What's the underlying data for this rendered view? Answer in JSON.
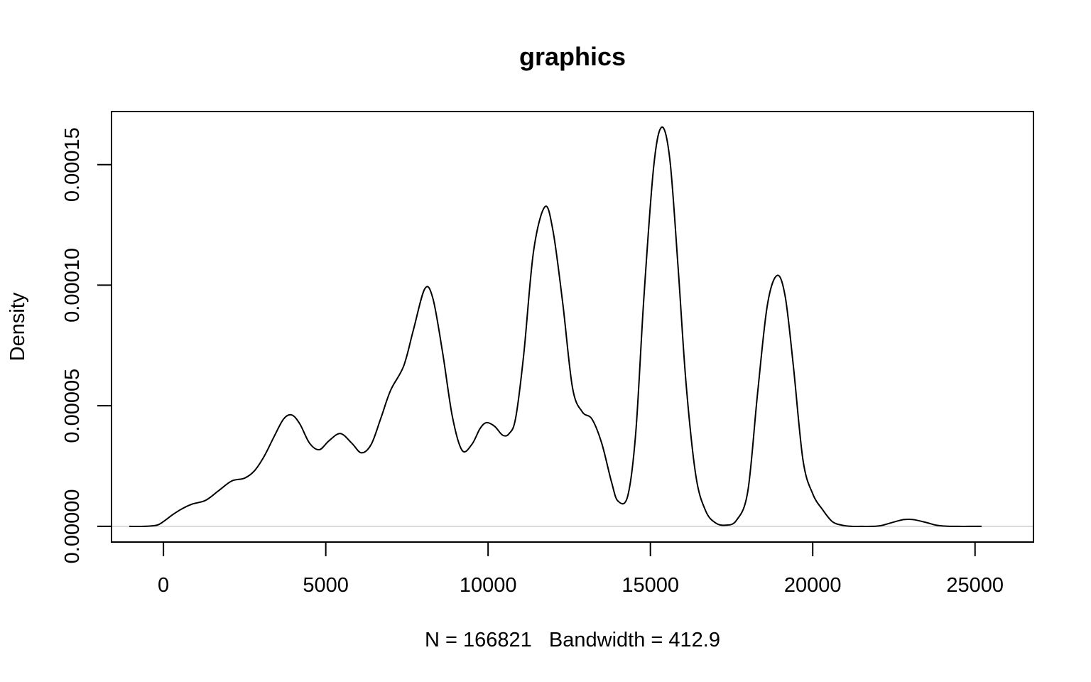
{
  "chart_data": {
    "type": "line",
    "title": "graphics",
    "xlabel": "N = 166821   Bandwidth = 412.9",
    "ylabel": "Density",
    "xlim": [
      -1600,
      26800
    ],
    "ylim": [
      -6.5e-06,
      0.000172
    ],
    "x_ticks": [
      0,
      5000,
      10000,
      15000,
      20000,
      25000
    ],
    "x_tick_labels": [
      "0",
      "5000",
      "10000",
      "15000",
      "20000",
      "25000"
    ],
    "y_ticks": [
      0,
      5e-05,
      0.0001,
      0.00015
    ],
    "y_tick_labels": [
      "0.00000",
      "0.00005",
      "0.00010",
      "0.00015"
    ],
    "baseline": 0,
    "baseline_color": "#bebebe",
    "line_color": "#000000",
    "grid": false,
    "legend": "none",
    "series": [
      {
        "x": [
          -1050,
          -600,
          -200,
          0,
          300,
          600,
          900,
          1300,
          1700,
          2100,
          2500,
          2800,
          3100,
          3400,
          3700,
          3950,
          4200,
          4500,
          4800,
          5100,
          5450,
          5800,
          6100,
          6400,
          6700,
          7000,
          7400,
          7700,
          8050,
          8300,
          8600,
          8900,
          9200,
          9500,
          9750,
          9950,
          10200,
          10450,
          10650,
          10850,
          11100,
          11400,
          11750,
          12000,
          12300,
          12600,
          12900,
          13200,
          13500,
          13800,
          14000,
          14300,
          14550,
          14800,
          15100,
          15350,
          15600,
          15850,
          16100,
          16400,
          16700,
          17000,
          17300,
          17650,
          18000,
          18300,
          18600,
          18900,
          19150,
          19400,
          19700,
          20000,
          20300,
          20600,
          20900,
          21200,
          21500,
          21800,
          22100,
          22500,
          22800,
          23100,
          23500,
          23800,
          24100,
          24500,
          24800,
          25200
        ],
        "y": [
          0,
          0,
          5e-07,
          2e-06,
          5e-06,
          7.5e-06,
          9.3e-06,
          1.08e-05,
          1.48e-05,
          1.88e-05,
          2e-05,
          2.3e-05,
          2.9e-05,
          3.7e-05,
          4.45e-05,
          4.62e-05,
          4.25e-05,
          3.45e-05,
          3.18e-05,
          3.55e-05,
          3.85e-05,
          3.45e-05,
          3.05e-05,
          3.4e-05,
          4.5e-05,
          5.65e-05,
          6.65e-05,
          8.15e-05,
          9.85e-05,
          9.45e-05,
          7.2e-05,
          4.55e-05,
          3.15e-05,
          3.4e-05,
          4.05e-05,
          4.3e-05,
          4.15e-05,
          3.78e-05,
          3.85e-05,
          4.5e-05,
          7.15e-05,
          0.000114,
          0.0001325,
          0.0001225,
          9.25e-05,
          5.75e-05,
          4.75e-05,
          4.45e-05,
          3.45e-05,
          1.85e-05,
          1.05e-05,
          1.25e-05,
          3.9e-05,
          9.5e-05,
          0.000149,
          0.0001655,
          0.000152,
          0.000108,
          5.9e-05,
          2.1e-05,
          6.5e-06,
          1.5e-06,
          5e-07,
          2.5e-06,
          1.45e-05,
          5.5e-05,
          9.15e-05,
          0.000104,
          9.55e-05,
          6.7e-05,
          2.75e-05,
          1.35e-05,
          7e-06,
          2e-06,
          5e-07,
          0,
          0,
          0,
          3e-07,
          1.8e-06,
          2.8e-06,
          2.8e-06,
          1.6e-06,
          5e-07,
          1e-07,
          0,
          0,
          0
        ]
      }
    ]
  }
}
